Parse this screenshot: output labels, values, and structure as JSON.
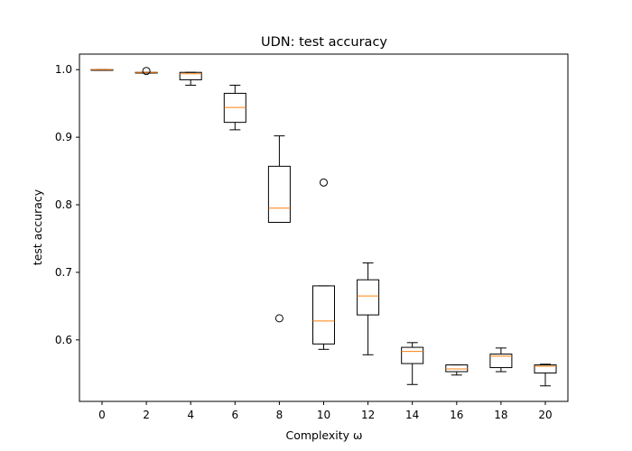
{
  "chart_data": {
    "type": "box",
    "title": "UDN: test accuracy",
    "xlabel": "Complexity ω",
    "ylabel": "test accuracy",
    "categories": [
      "0",
      "2",
      "4",
      "6",
      "8",
      "10",
      "12",
      "14",
      "16",
      "18",
      "20"
    ],
    "ylim": [
      0.509,
      1.023
    ],
    "yticks": [
      "0.6",
      "0.7",
      "0.8",
      "0.9",
      "1.0"
    ],
    "grid": false,
    "boxes": [
      {
        "x": 0,
        "whisker_low": 0.999,
        "q1": 0.999,
        "median": 1.0,
        "q3": 1.0,
        "whisker_high": 1.0,
        "outliers": []
      },
      {
        "x": 2,
        "whisker_low": 0.995,
        "q1": 0.995,
        "median": 0.996,
        "q3": 0.996,
        "whisker_high": 0.996,
        "outliers": [
          0.998
        ]
      },
      {
        "x": 4,
        "whisker_low": 0.977,
        "q1": 0.985,
        "median": 0.994,
        "q3": 0.996,
        "whisker_high": 0.996,
        "outliers": []
      },
      {
        "x": 6,
        "whisker_low": 0.911,
        "q1": 0.922,
        "median": 0.944,
        "q3": 0.965,
        "whisker_high": 0.977,
        "outliers": []
      },
      {
        "x": 8,
        "whisker_low": 0.774,
        "q1": 0.774,
        "median": 0.795,
        "q3": 0.857,
        "whisker_high": 0.902,
        "outliers": [
          0.632
        ]
      },
      {
        "x": 10,
        "whisker_low": 0.586,
        "q1": 0.594,
        "median": 0.628,
        "q3": 0.68,
        "whisker_high": 0.68,
        "outliers": [
          0.833
        ]
      },
      {
        "x": 12,
        "whisker_low": 0.578,
        "q1": 0.637,
        "median": 0.665,
        "q3": 0.689,
        "whisker_high": 0.714,
        "outliers": []
      },
      {
        "x": 14,
        "whisker_low": 0.534,
        "q1": 0.565,
        "median": 0.583,
        "q3": 0.589,
        "whisker_high": 0.596,
        "outliers": []
      },
      {
        "x": 16,
        "whisker_low": 0.548,
        "q1": 0.553,
        "median": 0.557,
        "q3": 0.563,
        "whisker_high": 0.563,
        "outliers": []
      },
      {
        "x": 18,
        "whisker_low": 0.553,
        "q1": 0.559,
        "median": 0.576,
        "q3": 0.579,
        "whisker_high": 0.588,
        "outliers": []
      },
      {
        "x": 20,
        "whisker_low": 0.532,
        "q1": 0.551,
        "median": 0.561,
        "q3": 0.563,
        "whisker_high": 0.564,
        "outliers": []
      }
    ],
    "colors": {
      "box": "#000000",
      "median": "#ff7f0e",
      "outlier": "#000000"
    }
  }
}
